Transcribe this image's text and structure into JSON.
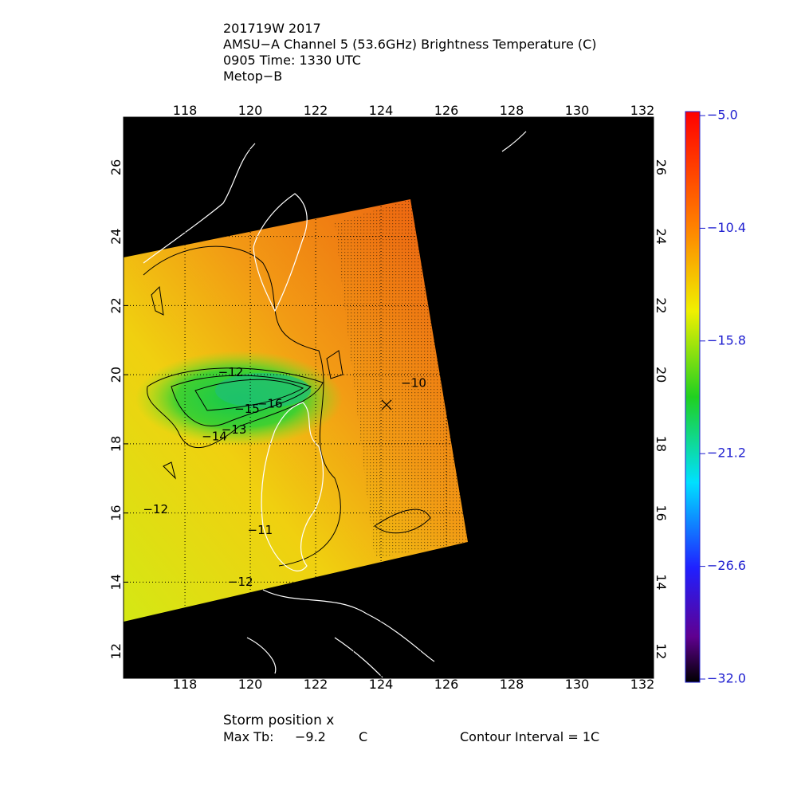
{
  "header": {
    "lines": [
      "201719W 2017",
      "AMSU−A Channel 5 (53.6GHz) Brightness Temperature (C)",
      "0905 Time: 1330 UTC",
      "Metop−B"
    ]
  },
  "map": {
    "xlim": [
      116.12,
      132.34
    ],
    "ylim": [
      11.22,
      27.45
    ],
    "xticks": [
      118,
      120,
      122,
      124,
      126,
      128,
      130,
      132
    ],
    "yticks": [
      12,
      14,
      16,
      18,
      20,
      22,
      24,
      26
    ],
    "grid": true,
    "contour_labels": [
      {
        "label": "−12",
        "lon": 119.4,
        "lat": 20.06
      },
      {
        "label": "−15",
        "lon": 119.9,
        "lat": 19.0
      },
      {
        "label": "−16",
        "lon": 120.6,
        "lat": 19.15
      },
      {
        "label": "−14",
        "lon": 118.9,
        "lat": 18.2
      },
      {
        "label": "−13",
        "lon": 119.5,
        "lat": 18.4
      },
      {
        "label": "−12",
        "lon": 117.1,
        "lat": 16.1
      },
      {
        "label": "−11",
        "lon": 120.3,
        "lat": 15.5
      },
      {
        "label": "−12",
        "lon": 119.7,
        "lat": 14.0
      },
      {
        "label": "−10",
        "lon": 125.0,
        "lat": 19.75
      }
    ],
    "storm_position": {
      "lon": 124.17,
      "lat": 19.13
    }
  },
  "colorbar": {
    "lim": [
      -32,
      -5
    ],
    "ticks": [
      {
        "value": -5,
        "label": "−5.0"
      },
      {
        "value": -10.4,
        "label": "−10.4"
      },
      {
        "value": -15.8,
        "label": "−15.8"
      },
      {
        "value": -21.2,
        "label": "−21.2"
      },
      {
        "value": -26.6,
        "label": "−26.6"
      },
      {
        "value": -32,
        "label": "−32.0"
      }
    ]
  },
  "footer": {
    "storm_label": "Storm position x",
    "max_tb_label": "Max Tb:",
    "max_tb_value": -9.2,
    "max_tb_unit": "C",
    "contour_interval": "Contour Interval = 1C"
  }
}
